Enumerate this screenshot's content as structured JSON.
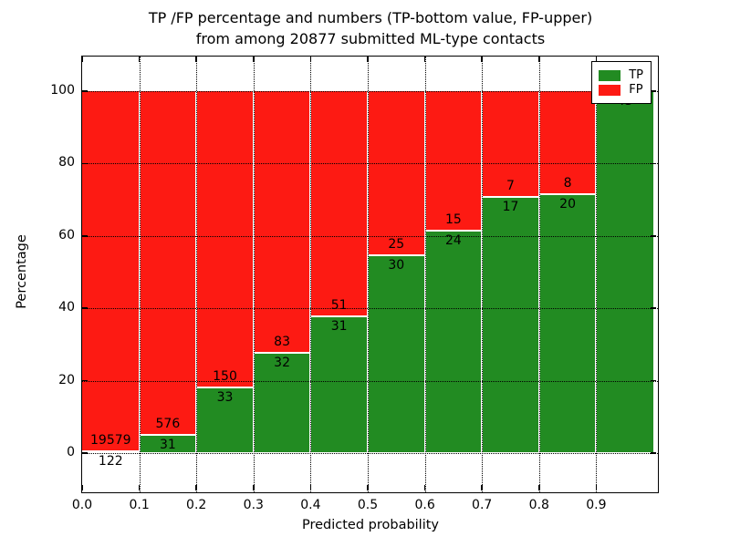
{
  "figure": {
    "title_line1": "TP /FP percentage and numbers (TP-bottom value, FP-upper)",
    "title_line2": "from among 20877 submitted ML-type contacts"
  },
  "chart_data": {
    "type": "bar",
    "subtype": "stacked-percentage-histogram",
    "title": "TP /FP percentage and numbers (TP-bottom value, FP-upper) from among 20877 submitted ML-type contacts",
    "xlabel": "Predicted probability",
    "ylabel": "Percentage",
    "total_contacts": 20877,
    "bin_edges": [
      0.0,
      0.1,
      0.2,
      0.3,
      0.4,
      0.5,
      0.6,
      0.7,
      0.8,
      0.9,
      1.0
    ],
    "x_tick_labels": [
      "0.0",
      "0.1",
      "0.2",
      "0.3",
      "0.4",
      "0.5",
      "0.6",
      "0.7",
      "0.8",
      "0.9"
    ],
    "y_tick_labels": [
      "0",
      "20",
      "40",
      "60",
      "80",
      "100"
    ],
    "y_tick_values": [
      0,
      20,
      40,
      60,
      80,
      100
    ],
    "ylim_percent": [
      0,
      100
    ],
    "grid": {
      "style": "dotted",
      "color": "#000000"
    },
    "legend": {
      "position": "upper-right",
      "entries": [
        {
          "label": "TP",
          "color": "#228b22"
        },
        {
          "label": "FP",
          "color": "#fd1a13"
        }
      ]
    },
    "series": [
      {
        "name": "TP",
        "color": "#228b22",
        "stack_position": "bottom",
        "counts": [
          122,
          31,
          33,
          32,
          31,
          30,
          24,
          17,
          20,
          43
        ]
      },
      {
        "name": "FP",
        "color": "#fd1a13",
        "stack_position": "top",
        "counts": [
          19579,
          576,
          150,
          83,
          51,
          25,
          15,
          7,
          8,
          0
        ]
      }
    ],
    "bar_annotations": {
      "tp_labels": [
        "122",
        "31",
        "33",
        "32",
        "31",
        "30",
        "24",
        "17",
        "20",
        "43"
      ],
      "fp_labels": [
        "19579",
        "576",
        "150",
        "83",
        "51",
        "25",
        "15",
        "7",
        "8",
        ""
      ]
    }
  }
}
